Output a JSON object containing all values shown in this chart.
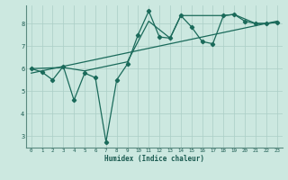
{
  "xlabel": "Humidex (Indice chaleur)",
  "bg_color": "#cce8e0",
  "grid_color": "#aacec6",
  "line_color": "#1a6a5a",
  "xlim": [
    -0.5,
    23.5
  ],
  "ylim": [
    2.5,
    8.8
  ],
  "yticks": [
    3,
    4,
    5,
    6,
    7,
    8
  ],
  "xticks": [
    0,
    1,
    2,
    3,
    4,
    5,
    6,
    7,
    8,
    9,
    10,
    11,
    12,
    13,
    14,
    15,
    16,
    17,
    18,
    19,
    20,
    21,
    22,
    23
  ],
  "line1_x": [
    0,
    1,
    2,
    3,
    4,
    5,
    6,
    7,
    8,
    9,
    10,
    11,
    12,
    13,
    14,
    15,
    16,
    17,
    18,
    19,
    20,
    21,
    22,
    23
  ],
  "line1_y": [
    6.0,
    5.85,
    5.5,
    6.1,
    4.6,
    5.8,
    5.6,
    2.75,
    5.5,
    6.2,
    7.5,
    8.55,
    7.4,
    7.35,
    8.35,
    7.85,
    7.2,
    7.1,
    8.35,
    8.4,
    8.1,
    8.0,
    8.0,
    8.05
  ],
  "line2_x": [
    0,
    3,
    5,
    9,
    11,
    13,
    14,
    18,
    19,
    21,
    22,
    23
  ],
  "line2_y": [
    6.0,
    6.05,
    5.9,
    6.3,
    8.1,
    7.35,
    8.35,
    8.35,
    8.4,
    8.0,
    8.0,
    8.05
  ],
  "line3_x": [
    0,
    23
  ],
  "line3_y": [
    5.8,
    8.1
  ]
}
